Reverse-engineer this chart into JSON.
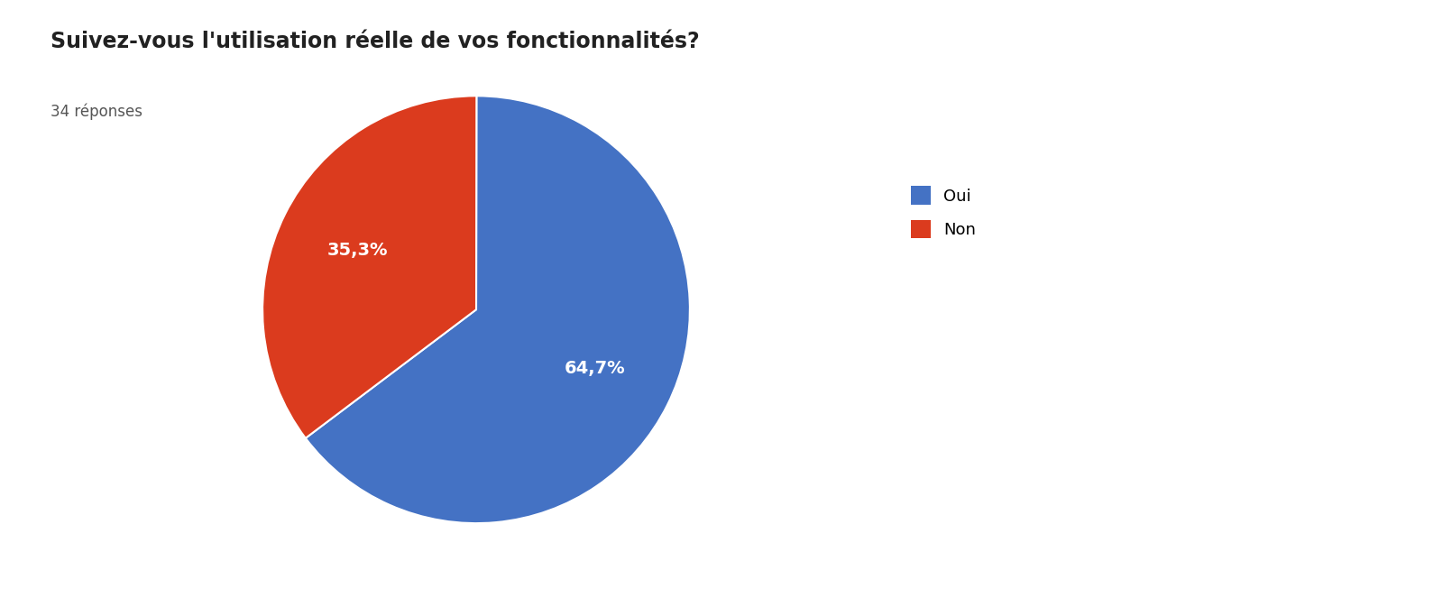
{
  "title": "Suivez-vous l'utilisation réelle de vos fonctionnalités?",
  "subtitle": "34 réponses",
  "labels": [
    "Oui",
    "Non"
  ],
  "values": [
    64.7,
    35.3
  ],
  "colors": [
    "#4472C4",
    "#DB3B1E"
  ],
  "text_colors": [
    "white",
    "white"
  ],
  "autopct_labels": [
    "64,7%",
    "35,3%"
  ],
  "legend_labels": [
    "Oui",
    "Non"
  ],
  "background_color": "#ffffff",
  "title_fontsize": 17,
  "subtitle_fontsize": 12,
  "label_fontsize": 14,
  "legend_fontsize": 13,
  "startangle": 217
}
